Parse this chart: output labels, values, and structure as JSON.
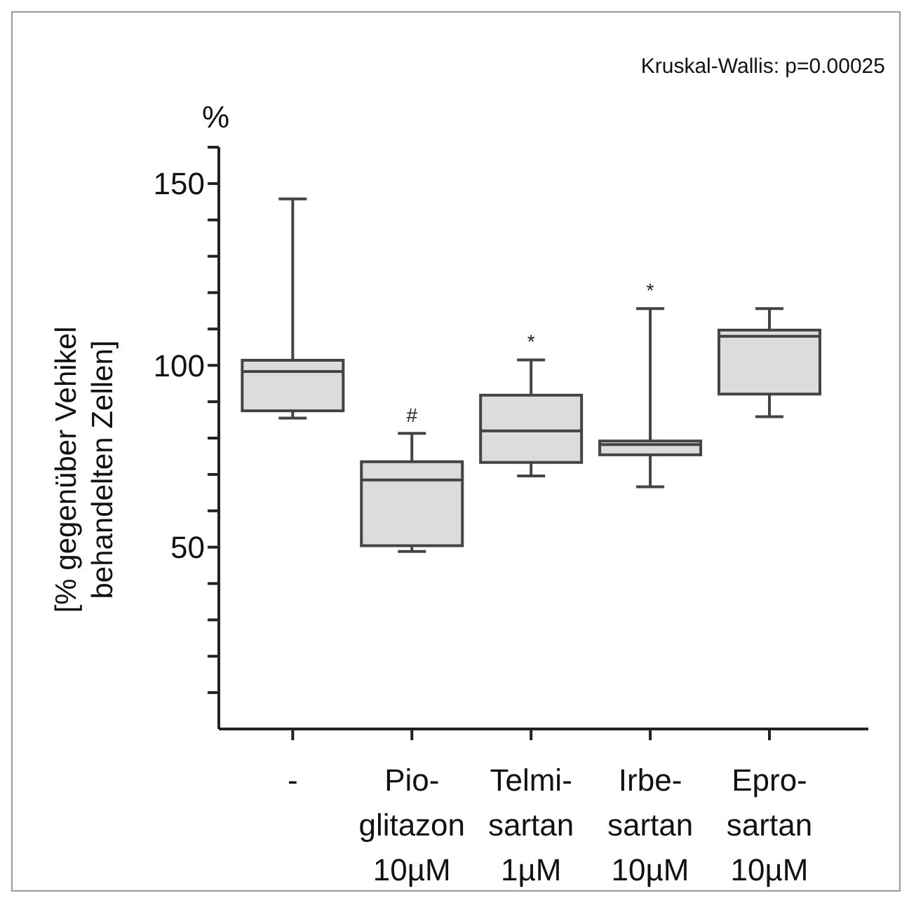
{
  "chart_data": {
    "type": "box",
    "ylabel": "[% gegenüber Vehikel\nbehandelten Zellen]",
    "categories": [
      "-",
      "Pio-\nglitazon\n10µM",
      "Telmi-\nsartan\n1µM",
      "Irbe-\nsartan\n10µM",
      "Epro-\nsartan\n10µM"
    ],
    "color": "#dcdcdc",
    "boxes": [
      {
        "low": 85.5,
        "q1": 87.5,
        "median": 98.3,
        "q3": 101.4,
        "high": 145.8
      },
      {
        "low": 48.8,
        "q1": 50.4,
        "median": 68.5,
        "q3": 73.5,
        "high": 81.3
      },
      {
        "low": 69.6,
        "q1": 73.3,
        "median": 82,
        "q3": 91.8,
        "high": 101.5
      },
      {
        "low": 66.6,
        "q1": 75.4,
        "median": 78.2,
        "q3": 79.2,
        "high": 115.6
      },
      {
        "low": 85.9,
        "q1": 92.1,
        "median": 108,
        "q3": 109.7,
        "high": 115.6
      }
    ],
    "ylim": [
      0,
      160
    ],
    "yticks": [
      {
        "value": 10,
        "label": null
      },
      {
        "value": 20,
        "label": null
      },
      {
        "value": 30,
        "label": null
      },
      {
        "value": 40,
        "label": null
      },
      50,
      {
        "value": 60,
        "label": null
      },
      {
        "value": 70,
        "label": null
      },
      {
        "value": 80,
        "label": null
      },
      {
        "value": 90,
        "label": null
      },
      100,
      {
        "value": 110,
        "label": null
      },
      {
        "value": 120,
        "label": null
      },
      {
        "value": 130,
        "label": null
      },
      {
        "value": 140,
        "label": null
      },
      150,
      {
        "value": 160,
        "label": null
      }
    ],
    "annotations": [
      "Kruskal-Wallis: p=0.00025",
      "%",
      "#",
      "*",
      "*"
    ]
  }
}
